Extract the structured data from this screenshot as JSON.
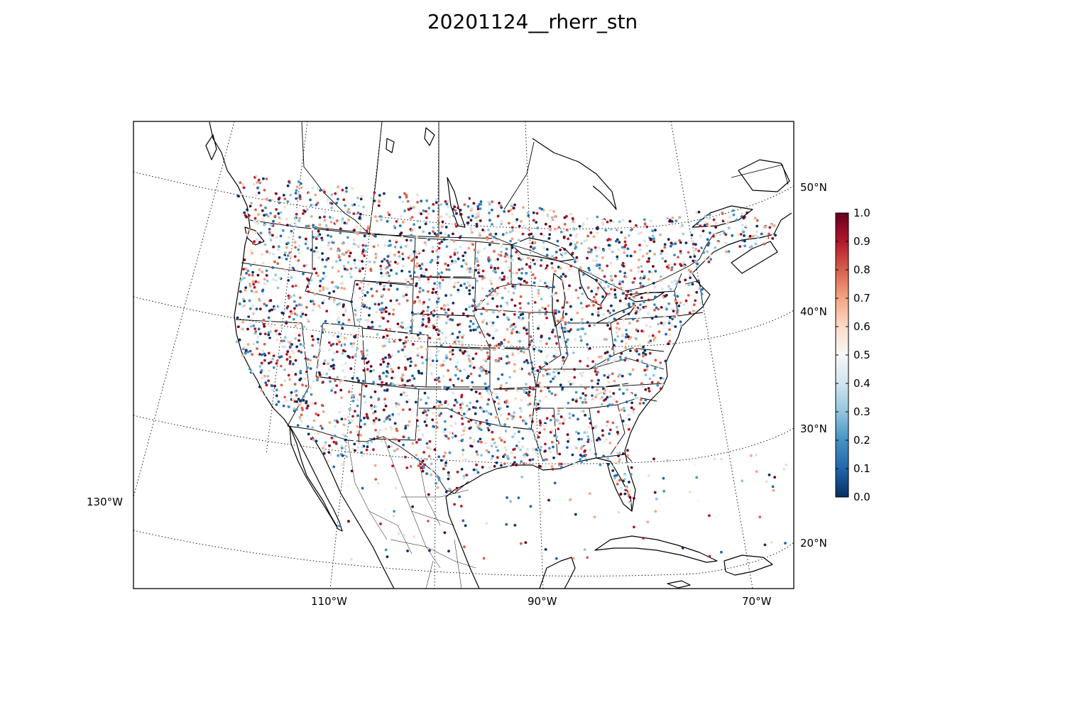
{
  "title": "20201124__rherr_stn",
  "map": {
    "projection": "lambert-conformal",
    "region": "North America (CONUS, southern Canada, northern Mexico, Caribbean)",
    "latitude_labels": [
      "50°N",
      "40°N",
      "30°N",
      "20°N"
    ],
    "longitude_labels": [
      "130°W",
      "110°W",
      "90°W",
      "70°W"
    ],
    "marker": "station dots colored by value"
  },
  "colorbar": {
    "colormap": "RdBu_r",
    "min": 0.0,
    "max": 1.0,
    "tick_labels": [
      "0.0",
      "0.1",
      "0.2",
      "0.3",
      "0.4",
      "0.5",
      "0.6",
      "0.7",
      "0.8",
      "0.9",
      "1.0"
    ],
    "colors": [
      "#053061",
      "#2166ac",
      "#4393c3",
      "#92c5de",
      "#d1e5f0",
      "#f7f7f7",
      "#fddbc7",
      "#f4a582",
      "#d6604d",
      "#b2182b",
      "#67001f"
    ]
  }
}
